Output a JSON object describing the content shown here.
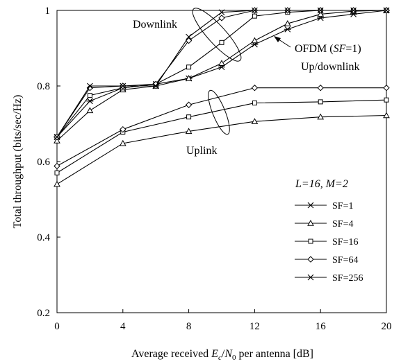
{
  "chart_data": {
    "type": "line",
    "xlabel": {
      "prefix": "Average received ",
      "var1": "E",
      "sub1": "c",
      "mid": "/",
      "var2": "N",
      "sub2": "0",
      "suffix": " per antenna [dB]"
    },
    "ylabel": "Total throughput (bits/sec/Hz)",
    "xlim": [
      0,
      20
    ],
    "ylim": [
      0.2,
      1.0
    ],
    "xticks": [
      0,
      4,
      8,
      12,
      16,
      20
    ],
    "yticks": [
      0.2,
      0.4,
      0.6,
      0.8,
      1
    ],
    "grid": false,
    "legend_position": "bottom-right",
    "legend_title": "L=16, M=2",
    "annotations": {
      "downlink": "Downlink",
      "uplink": "Uplink",
      "ofdm_line1": "OFDM (SF=1)",
      "ofdm_line2": "Up/downlink"
    },
    "series": [
      {
        "name": "SF=1",
        "marker": "star",
        "group": "up/downlink",
        "x": [
          0,
          2,
          4,
          6,
          8,
          10,
          12,
          14,
          16,
          18,
          20
        ],
        "y": [
          0.665,
          0.76,
          0.795,
          0.805,
          0.82,
          0.85,
          0.91,
          0.95,
          0.98,
          0.99,
          1.0
        ]
      },
      {
        "name": "SF=4",
        "marker": "triangle",
        "group": "downlink",
        "x": [
          0,
          2,
          4,
          6,
          8,
          10,
          12,
          14,
          16,
          18,
          20
        ],
        "y": [
          0.655,
          0.735,
          0.79,
          0.8,
          0.82,
          0.86,
          0.92,
          0.965,
          0.99,
          0.998,
          1.0
        ]
      },
      {
        "name": "SF=16",
        "marker": "square",
        "group": "downlink",
        "x": [
          0,
          2,
          4,
          6,
          8,
          10,
          12,
          14,
          16,
          18,
          20
        ],
        "y": [
          0.665,
          0.775,
          0.795,
          0.805,
          0.85,
          0.915,
          0.985,
          0.995,
          1.0,
          1.0,
          1.0
        ]
      },
      {
        "name": "SF=64",
        "marker": "diamond",
        "group": "downlink",
        "x": [
          0,
          2,
          4,
          6,
          8,
          10,
          12,
          14,
          16,
          18,
          20
        ],
        "y": [
          0.665,
          0.795,
          0.8,
          0.805,
          0.92,
          0.98,
          1.0,
          1.0,
          1.0,
          1.0,
          1.0
        ]
      },
      {
        "name": "SF=256",
        "marker": "x",
        "group": "downlink",
        "x": [
          0,
          2,
          4,
          6,
          8,
          10,
          12,
          14,
          16,
          18,
          20
        ],
        "y": [
          0.665,
          0.8,
          0.8,
          0.8,
          0.93,
          0.995,
          1.0,
          1.0,
          1.0,
          1.0,
          1.0
        ]
      },
      {
        "name": "SF=4",
        "marker": "triangle",
        "group": "uplink",
        "x": [
          0,
          4,
          8,
          12,
          16,
          20
        ],
        "y": [
          0.54,
          0.648,
          0.68,
          0.706,
          0.718,
          0.722
        ]
      },
      {
        "name": "SF=16",
        "marker": "square",
        "group": "uplink",
        "x": [
          0,
          4,
          8,
          12,
          16,
          20
        ],
        "y": [
          0.57,
          0.678,
          0.718,
          0.755,
          0.758,
          0.763
        ]
      },
      {
        "name": "SF=64",
        "marker": "diamond",
        "group": "uplink",
        "x": [
          0,
          4,
          8,
          12,
          16,
          20
        ],
        "y": [
          0.588,
          0.685,
          0.75,
          0.795,
          0.795,
          0.795
        ]
      }
    ]
  }
}
